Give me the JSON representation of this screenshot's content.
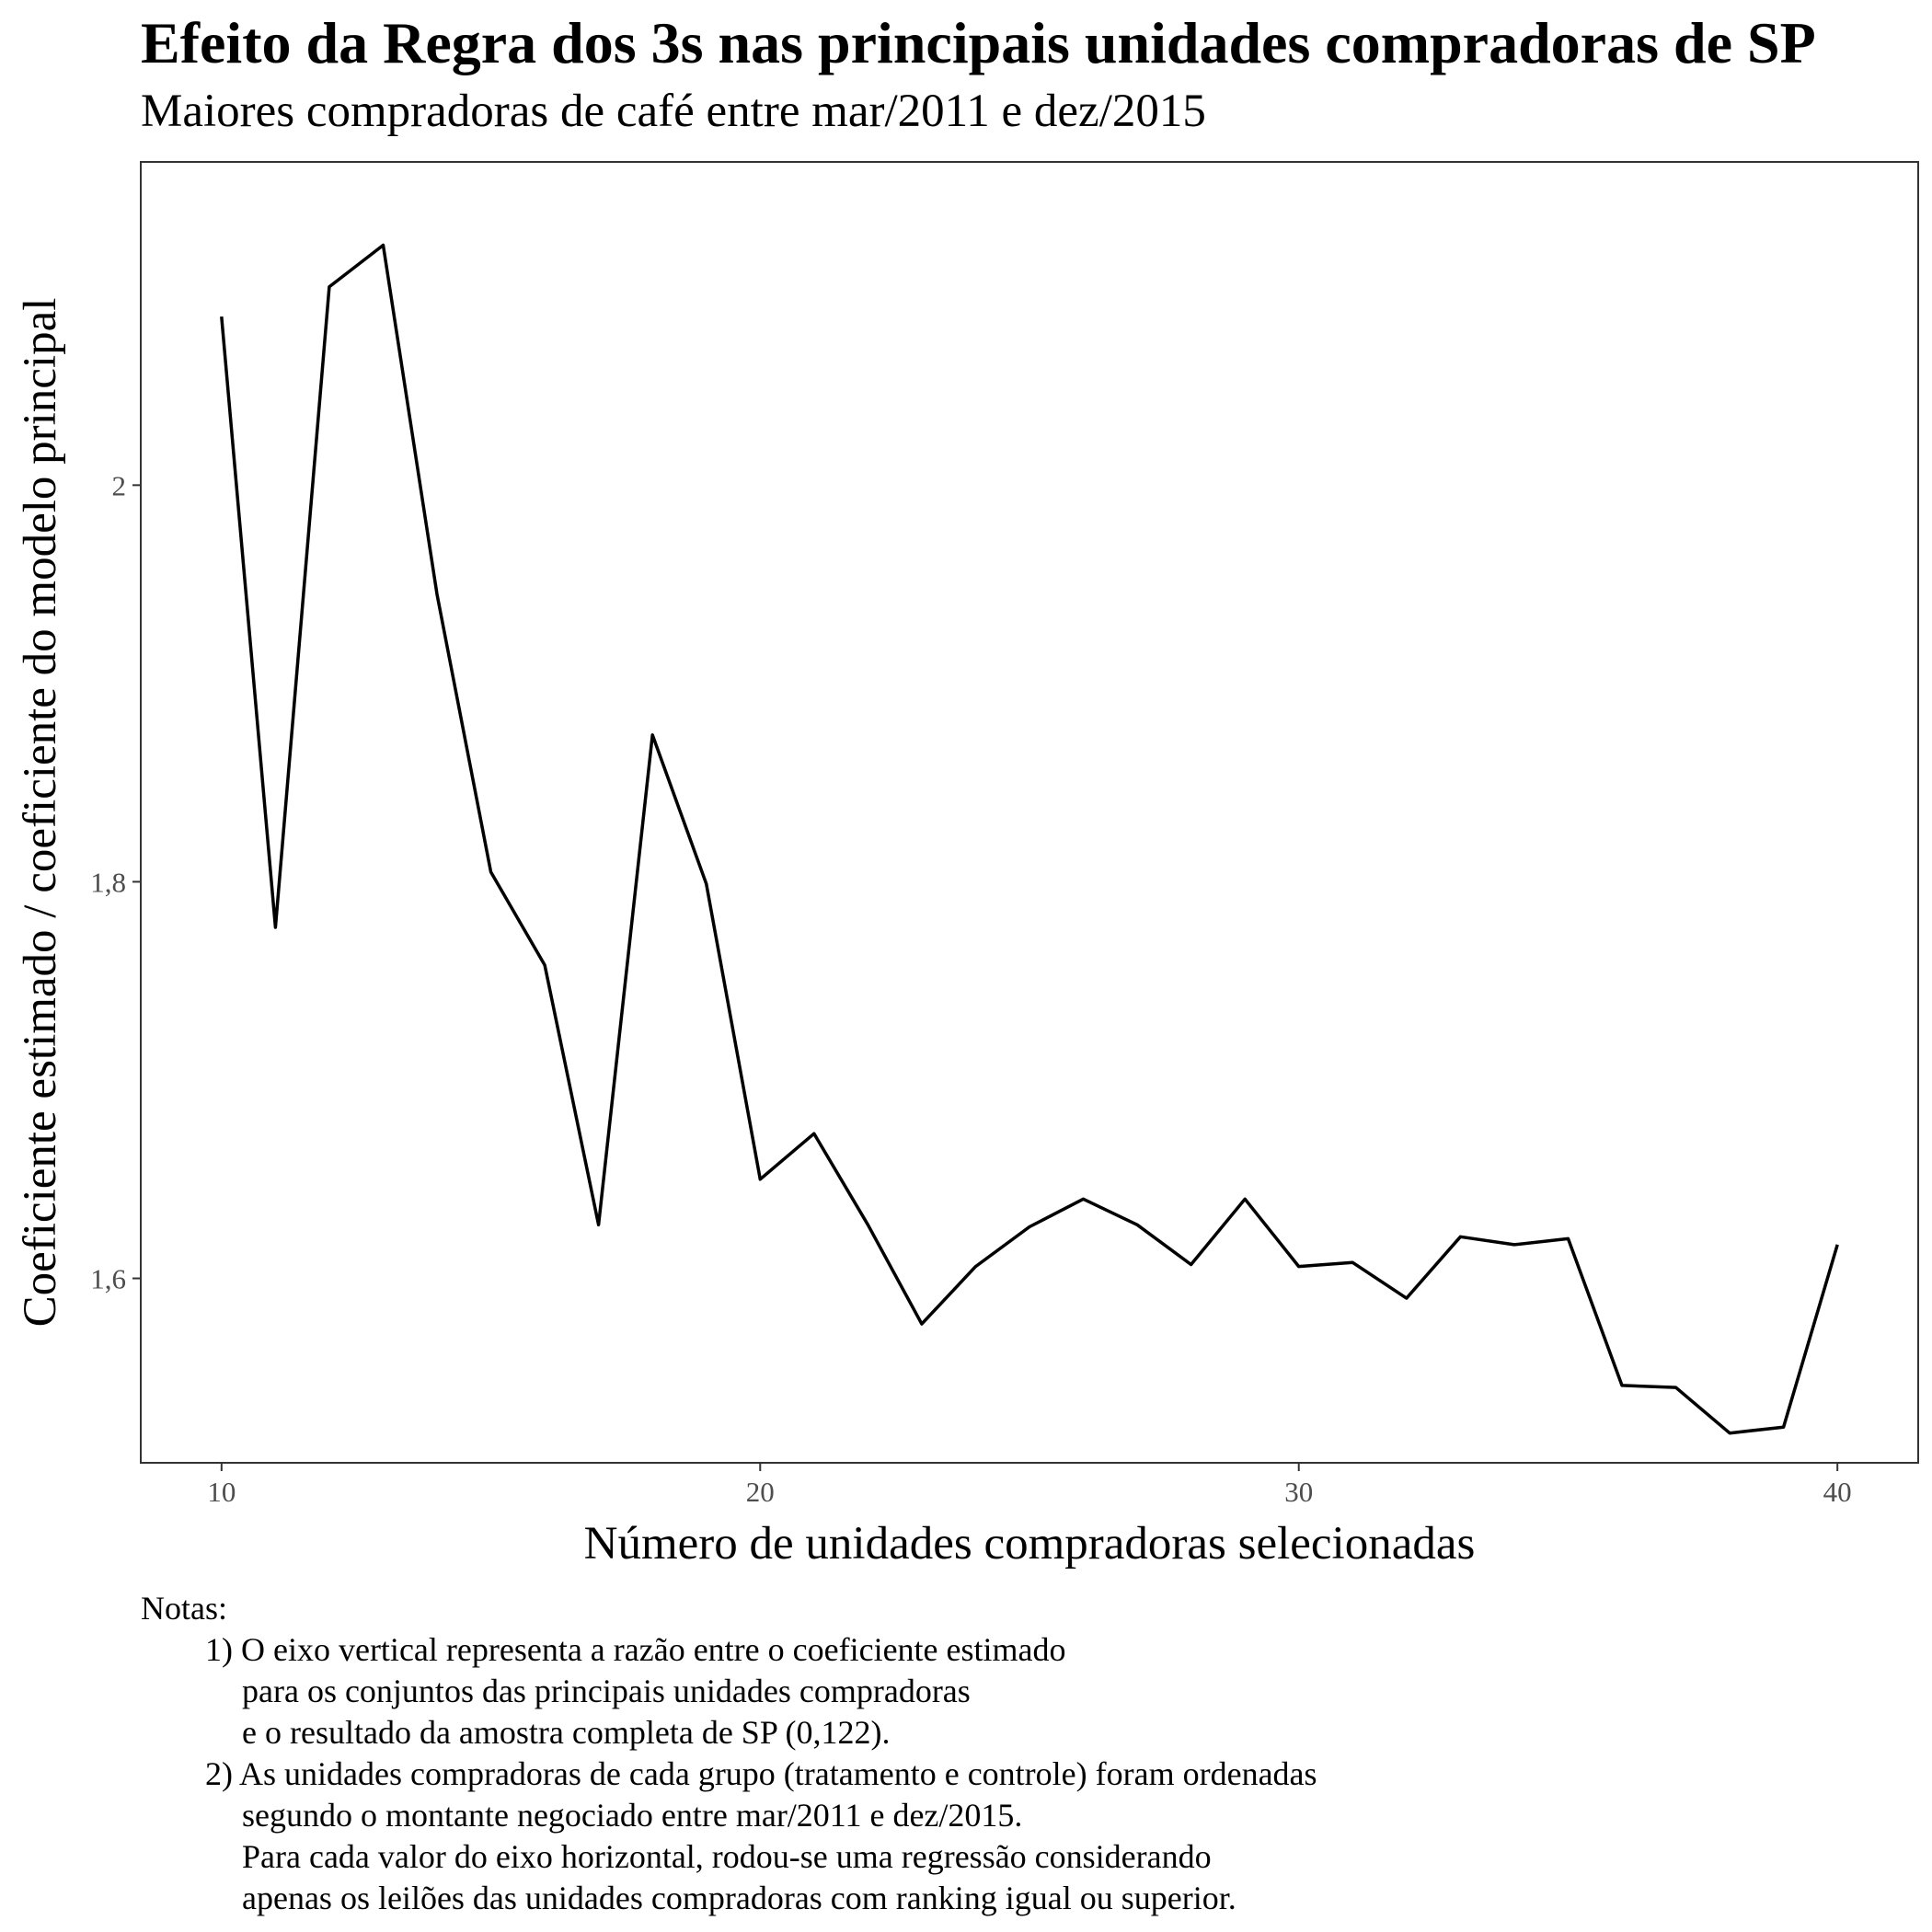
{
  "chart_data": {
    "type": "line",
    "title": "Efeito da Regra dos 3s nas principais unidades compradoras de SP",
    "subtitle": "Maiores compradoras de café entre mar/2011 e dez/2015",
    "xlabel": "Número de unidades compradoras selecionadas",
    "ylabel": "Coeficiente estimado / coeficiente do modelo principal",
    "xlim": [
      8.5,
      41.5
    ],
    "ylim": [
      1.507,
      2.163
    ],
    "x_ticks": [
      10,
      20,
      30,
      40
    ],
    "x_tick_labels": [
      "10",
      "20",
      "30",
      "40"
    ],
    "y_ticks": [
      1.6,
      1.8,
      2.0
    ],
    "y_tick_labels": [
      "1,6",
      "1,8",
      "2"
    ],
    "grid": false,
    "line_color": "#000000",
    "series": [
      {
        "x": [
          10,
          11,
          12,
          13,
          14,
          15,
          16,
          17,
          18,
          19,
          20,
          21,
          22,
          23,
          24,
          25,
          26,
          27,
          28,
          29,
          30,
          31,
          32,
          33,
          34,
          35,
          36,
          37,
          38,
          39,
          40
        ],
        "values": [
          2.085,
          1.777,
          2.1,
          2.121,
          1.945,
          1.805,
          1.758,
          1.627,
          1.874,
          1.799,
          1.65,
          1.673,
          1.627,
          1.577,
          1.606,
          1.626,
          1.64,
          1.627,
          1.607,
          1.64,
          1.606,
          1.608,
          1.59,
          1.621,
          1.617,
          1.62,
          1.546,
          1.545,
          1.522,
          1.525,
          1.617
        ]
      }
    ]
  },
  "notes": {
    "heading": "Notas:",
    "lines": [
      "1) O eixo vertical representa a razão entre o coeficiente estimado",
      "para os conjuntos das principais unidades compradoras",
      "e o resultado da amostra completa de SP (0,122).",
      "2) As unidades compradoras de cada grupo (tratamento e controle) foram ordenadas",
      "segundo o montante negociado entre mar/2011 e dez/2015.",
      "Para cada valor do eixo horizontal, rodou-se uma regressão considerando",
      "apenas os leilões das unidades compradoras com ranking igual ou superior."
    ]
  }
}
